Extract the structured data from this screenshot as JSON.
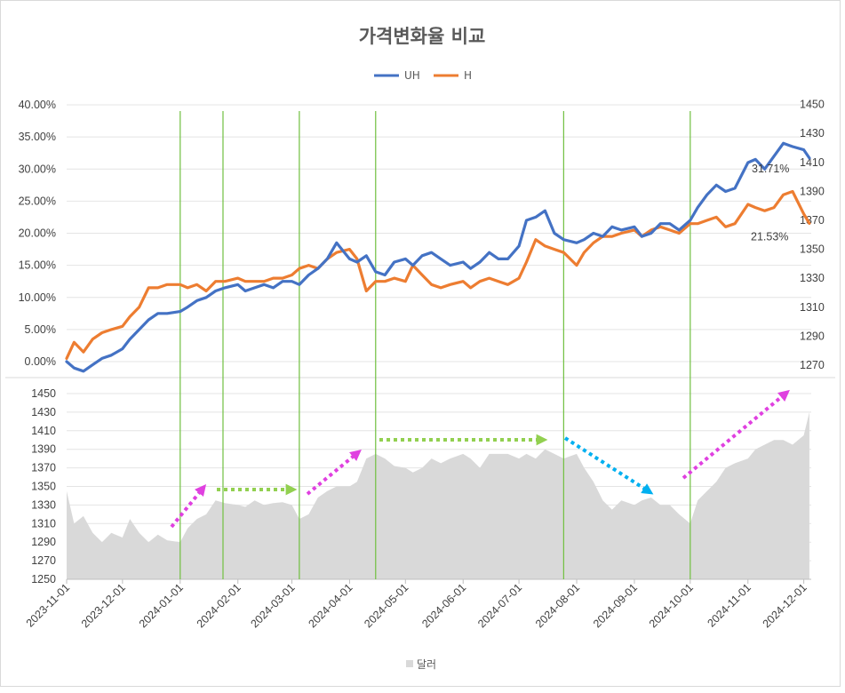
{
  "chart_data": [
    {
      "type": "line",
      "title": "가격변화율 비교",
      "legend": [
        "UH",
        "H"
      ],
      "legend_position": "top",
      "x_range": [
        "2023-11-01",
        "2024-12-05"
      ],
      "y_left": {
        "ticks": [
          "0.00%",
          "5.00%",
          "10.00%",
          "15.00%",
          "20.00%",
          "25.00%",
          "30.00%",
          "35.00%",
          "40.00%"
        ],
        "range": [
          0,
          40
        ]
      },
      "y_right": {
        "ticks": [
          "1270",
          "1290",
          "1310",
          "1330",
          "1350",
          "1370",
          "1390",
          "1410",
          "1430",
          "1450"
        ],
        "range": [
          1270,
          1450
        ]
      },
      "series": [
        {
          "name": "UH",
          "color": "#4472c4",
          "x": [
            "2023-11-01",
            "2023-11-05",
            "2023-11-10",
            "2023-11-15",
            "2023-11-20",
            "2023-11-25",
            "2023-12-01",
            "2023-12-05",
            "2023-12-10",
            "2023-12-15",
            "2023-12-20",
            "2023-12-25",
            "2024-01-01",
            "2024-01-05",
            "2024-01-10",
            "2024-01-15",
            "2024-01-20",
            "2024-01-25",
            "2024-02-01",
            "2024-02-05",
            "2024-02-10",
            "2024-02-15",
            "2024-02-20",
            "2024-02-25",
            "2024-03-01",
            "2024-03-05",
            "2024-03-10",
            "2024-03-15",
            "2024-03-20",
            "2024-03-25",
            "2024-04-01",
            "2024-04-05",
            "2024-04-10",
            "2024-04-15",
            "2024-04-20",
            "2024-04-25",
            "2024-05-01",
            "2024-05-05",
            "2024-05-10",
            "2024-05-15",
            "2024-05-20",
            "2024-05-25",
            "2024-06-01",
            "2024-06-05",
            "2024-06-10",
            "2024-06-15",
            "2024-06-20",
            "2024-06-25",
            "2024-07-01",
            "2024-07-05",
            "2024-07-10",
            "2024-07-15",
            "2024-07-20",
            "2024-07-25",
            "2024-08-01",
            "2024-08-05",
            "2024-08-10",
            "2024-08-15",
            "2024-08-20",
            "2024-08-25",
            "2024-09-01",
            "2024-09-05",
            "2024-09-10",
            "2024-09-15",
            "2024-09-20",
            "2024-09-25",
            "2024-10-01",
            "2024-10-05",
            "2024-10-10",
            "2024-10-15",
            "2024-10-20",
            "2024-10-25",
            "2024-11-01",
            "2024-11-05",
            "2024-11-10",
            "2024-11-15",
            "2024-11-20",
            "2024-11-25",
            "2024-12-01",
            "2024-12-04"
          ],
          "values": [
            0.0,
            -1.0,
            -1.5,
            -0.5,
            0.5,
            1.0,
            2.0,
            3.5,
            5.0,
            6.5,
            7.5,
            7.5,
            7.8,
            8.5,
            9.5,
            10.0,
            11.0,
            11.5,
            12.0,
            11.0,
            11.5,
            12.0,
            11.5,
            12.5,
            12.5,
            12.0,
            13.5,
            14.5,
            16.0,
            18.5,
            16.0,
            15.5,
            16.5,
            14.0,
            13.5,
            15.5,
            16.0,
            15.0,
            16.5,
            17.0,
            16.0,
            15.0,
            15.5,
            14.5,
            15.5,
            17.0,
            16.0,
            16.0,
            18.0,
            22.0,
            22.5,
            23.5,
            20.0,
            19.0,
            18.5,
            19.0,
            20.0,
            19.5,
            21.0,
            20.5,
            21.0,
            19.5,
            20.0,
            21.5,
            21.5,
            20.5,
            22.0,
            24.0,
            26.0,
            27.5,
            26.5,
            27.0,
            31.0,
            31.5,
            30.0,
            32.0,
            34.0,
            33.5,
            33.0,
            31.71
          ]
        },
        {
          "name": "H",
          "color": "#ed7d31",
          "x": [
            "2023-11-01",
            "2023-11-05",
            "2023-11-10",
            "2023-11-15",
            "2023-11-20",
            "2023-11-25",
            "2023-12-01",
            "2023-12-05",
            "2023-12-10",
            "2023-12-15",
            "2023-12-20",
            "2023-12-25",
            "2024-01-01",
            "2024-01-05",
            "2024-01-10",
            "2024-01-15",
            "2024-01-20",
            "2024-01-25",
            "2024-02-01",
            "2024-02-05",
            "2024-02-10",
            "2024-02-15",
            "2024-02-20",
            "2024-02-25",
            "2024-03-01",
            "2024-03-05",
            "2024-03-10",
            "2024-03-15",
            "2024-03-20",
            "2024-03-25",
            "2024-04-01",
            "2024-04-05",
            "2024-04-10",
            "2024-04-15",
            "2024-04-20",
            "2024-04-25",
            "2024-05-01",
            "2024-05-05",
            "2024-05-10",
            "2024-05-15",
            "2024-05-20",
            "2024-05-25",
            "2024-06-01",
            "2024-06-05",
            "2024-06-10",
            "2024-06-15",
            "2024-06-20",
            "2024-06-25",
            "2024-07-01",
            "2024-07-05",
            "2024-07-10",
            "2024-07-15",
            "2024-07-20",
            "2024-07-25",
            "2024-08-01",
            "2024-08-05",
            "2024-08-10",
            "2024-08-15",
            "2024-08-20",
            "2024-08-25",
            "2024-09-01",
            "2024-09-05",
            "2024-09-10",
            "2024-09-15",
            "2024-09-20",
            "2024-09-25",
            "2024-10-01",
            "2024-10-05",
            "2024-10-10",
            "2024-10-15",
            "2024-10-20",
            "2024-10-25",
            "2024-11-01",
            "2024-11-05",
            "2024-11-10",
            "2024-11-15",
            "2024-11-20",
            "2024-11-25",
            "2024-12-01",
            "2024-12-04"
          ],
          "values": [
            0.5,
            3.0,
            1.5,
            3.5,
            4.5,
            5.0,
            5.5,
            7.0,
            8.5,
            11.5,
            11.5,
            12.0,
            12.0,
            11.5,
            12.0,
            11.0,
            12.5,
            12.5,
            13.0,
            12.5,
            12.5,
            12.5,
            13.0,
            13.0,
            13.5,
            14.5,
            15.0,
            14.5,
            16.0,
            17.0,
            17.5,
            16.0,
            11.0,
            12.5,
            12.5,
            13.0,
            12.5,
            15.0,
            13.5,
            12.0,
            11.5,
            12.0,
            12.5,
            11.5,
            12.5,
            13.0,
            12.5,
            12.0,
            13.0,
            15.5,
            19.0,
            18.0,
            17.5,
            17.0,
            15.0,
            17.0,
            18.5,
            19.5,
            19.5,
            20.0,
            20.5,
            19.5,
            20.5,
            21.0,
            20.5,
            20.0,
            21.5,
            21.5,
            22.0,
            22.5,
            21.0,
            21.5,
            24.5,
            24.0,
            23.5,
            24.0,
            26.0,
            26.5,
            23.0,
            21.53
          ]
        }
      ],
      "annotations": [
        "31.71%",
        "21.53%"
      ]
    },
    {
      "type": "area",
      "legend": [
        "달러"
      ],
      "legend_position": "bottom",
      "y_ticks": [
        "1250",
        "1270",
        "1290",
        "1310",
        "1330",
        "1350",
        "1370",
        "1390",
        "1410",
        "1430",
        "1450"
      ],
      "ylim": [
        1250,
        1450
      ],
      "x_ticks": [
        "2023-11-01",
        "2023-12-01",
        "2024-01-01",
        "2024-02-01",
        "2024-03-01",
        "2024-04-01",
        "2024-05-01",
        "2024-06-01",
        "2024-07-01",
        "2024-08-01",
        "2024-09-01",
        "2024-10-01",
        "2024-11-01",
        "2024-12-01"
      ],
      "series": [
        {
          "name": "달러",
          "color": "#d9d9d9",
          "x": [
            "2023-11-01",
            "2023-11-05",
            "2023-11-10",
            "2023-11-15",
            "2023-11-20",
            "2023-11-25",
            "2023-12-01",
            "2023-12-05",
            "2023-12-10",
            "2023-12-15",
            "2023-12-20",
            "2023-12-25",
            "2024-01-01",
            "2024-01-05",
            "2024-01-10",
            "2024-01-15",
            "2024-01-20",
            "2024-01-25",
            "2024-02-01",
            "2024-02-05",
            "2024-02-10",
            "2024-02-15",
            "2024-02-20",
            "2024-02-25",
            "2024-03-01",
            "2024-03-05",
            "2024-03-10",
            "2024-03-15",
            "2024-03-20",
            "2024-03-25",
            "2024-04-01",
            "2024-04-05",
            "2024-04-10",
            "2024-04-15",
            "2024-04-20",
            "2024-04-25",
            "2024-05-01",
            "2024-05-05",
            "2024-05-10",
            "2024-05-15",
            "2024-05-20",
            "2024-05-25",
            "2024-06-01",
            "2024-06-05",
            "2024-06-10",
            "2024-06-15",
            "2024-06-20",
            "2024-06-25",
            "2024-07-01",
            "2024-07-05",
            "2024-07-10",
            "2024-07-15",
            "2024-07-20",
            "2024-07-25",
            "2024-08-01",
            "2024-08-05",
            "2024-08-10",
            "2024-08-15",
            "2024-08-20",
            "2024-08-25",
            "2024-09-01",
            "2024-09-05",
            "2024-09-10",
            "2024-09-15",
            "2024-09-20",
            "2024-09-25",
            "2024-10-01",
            "2024-10-05",
            "2024-10-10",
            "2024-10-15",
            "2024-10-20",
            "2024-10-25",
            "2024-11-01",
            "2024-11-05",
            "2024-11-10",
            "2024-11-15",
            "2024-11-20",
            "2024-11-25",
            "2024-12-01",
            "2024-12-04"
          ],
          "values": [
            1345,
            1310,
            1318,
            1300,
            1290,
            1300,
            1295,
            1315,
            1300,
            1290,
            1298,
            1292,
            1290,
            1305,
            1315,
            1320,
            1335,
            1332,
            1330,
            1328,
            1335,
            1330,
            1332,
            1333,
            1330,
            1315,
            1320,
            1338,
            1345,
            1350,
            1350,
            1355,
            1380,
            1385,
            1380,
            1372,
            1370,
            1365,
            1370,
            1380,
            1375,
            1380,
            1385,
            1380,
            1370,
            1385,
            1385,
            1385,
            1380,
            1385,
            1380,
            1390,
            1385,
            1380,
            1385,
            1370,
            1355,
            1335,
            1325,
            1335,
            1330,
            1335,
            1338,
            1330,
            1330,
            1320,
            1310,
            1335,
            1345,
            1355,
            1370,
            1375,
            1380,
            1390,
            1395,
            1400,
            1400,
            1395,
            1405,
            1430
          ]
        }
      ],
      "annotations": [
        {
          "direction": "up",
          "color": "#e040e0",
          "from": "2024-01-01",
          "to": "2024-01-15"
        },
        {
          "direction": "flat",
          "color": "#92d050",
          "from": "2024-01-25",
          "to": "2024-03-01"
        },
        {
          "direction": "up",
          "color": "#e040e0",
          "from": "2024-03-10",
          "to": "2024-04-01"
        },
        {
          "direction": "flat",
          "color": "#92d050",
          "from": "2024-04-25",
          "to": "2024-07-25"
        },
        {
          "direction": "down",
          "color": "#00b0f0",
          "from": "2024-08-01",
          "to": "2024-09-15"
        },
        {
          "direction": "up",
          "color": "#e040e0",
          "from": "2024-10-01",
          "to": "2024-11-30"
        }
      ]
    }
  ],
  "vertical_markers": [
    "2024-01-01",
    "2024-01-24",
    "2024-03-05",
    "2024-04-15",
    "2024-07-25",
    "2024-10-01"
  ]
}
